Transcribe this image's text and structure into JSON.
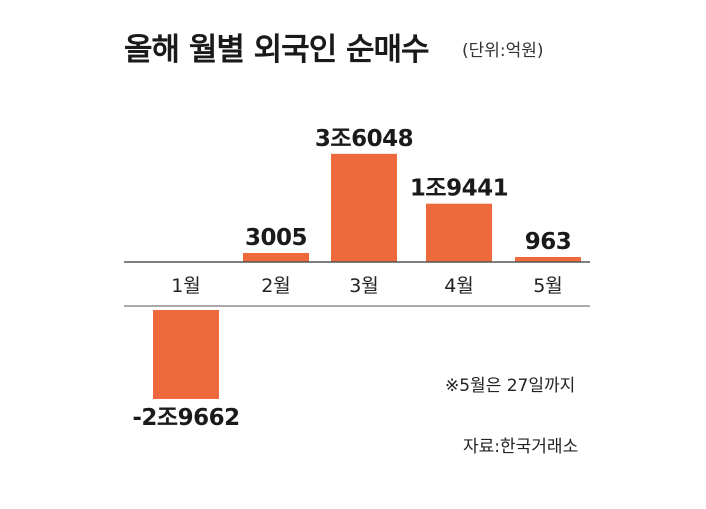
{
  "chart_data": {
    "type": "bar",
    "title": "올해 월별 외국인 순매수",
    "unit": "(단위:억원)",
    "categories": [
      "1월",
      "2월",
      "3월",
      "4월",
      "5월"
    ],
    "values": [
      -29662,
      3005,
      36048,
      19441,
      963
    ],
    "value_labels": [
      "-2조9662",
      "3005",
      "3조6048",
      "1조9441",
      "963"
    ],
    "bar_color": "#ee6a3c",
    "legend": "none",
    "grid": false
  },
  "note": "※5월은 27일까지",
  "source": "자료:한국거래소"
}
